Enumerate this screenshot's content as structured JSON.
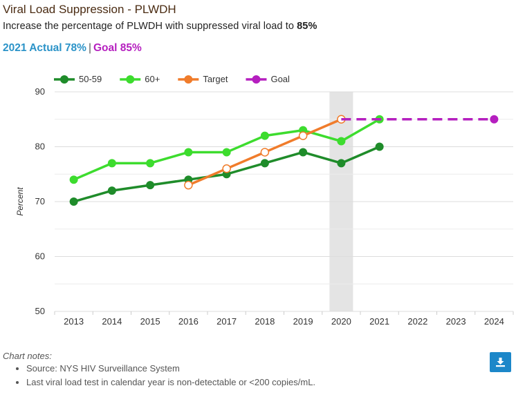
{
  "header": {
    "title": "Viral Load Suppression - PLWDH",
    "subtitle_text": "Increase the percentage of PLWDH with suppressed viral load to ",
    "subtitle_bold": "85%",
    "actual_label": "2021 Actual",
    "actual_value": "78%",
    "separator": "|",
    "goal_label": "Goal",
    "goal_value": "85%"
  },
  "chart_data": {
    "type": "line",
    "xlabel": "",
    "ylabel": "Percent",
    "ylim": [
      50,
      90
    ],
    "yticks": [
      50,
      60,
      70,
      80,
      90
    ],
    "categories": [
      "2013",
      "2014",
      "2015",
      "2016",
      "2017",
      "2018",
      "2019",
      "2020",
      "2021",
      "2022",
      "2023",
      "2024"
    ],
    "highlight_category": "2020",
    "grid": true,
    "legend": "top-left",
    "series": [
      {
        "name": "50-59",
        "color": "#1f8c2a",
        "style": "solid",
        "marker": "filled",
        "values": [
          70,
          72,
          73,
          74,
          75,
          77,
          79,
          77,
          80,
          null,
          null,
          null
        ]
      },
      {
        "name": "60+",
        "color": "#3ddc2e",
        "style": "solid",
        "marker": "filled",
        "values": [
          74,
          77,
          77,
          79,
          79,
          82,
          83,
          81,
          85,
          null,
          null,
          null
        ]
      },
      {
        "name": "Target",
        "color": "#f07c2b",
        "style": "solid",
        "marker": "hollow",
        "values": [
          null,
          null,
          null,
          73,
          76,
          79,
          82,
          85,
          null,
          null,
          null,
          null
        ]
      },
      {
        "name": "Goal",
        "color": "#b51fbf",
        "style": "dashed",
        "marker": "end-filled",
        "values": [
          null,
          null,
          null,
          null,
          null,
          null,
          null,
          85,
          85,
          85,
          85,
          85
        ]
      }
    ]
  },
  "notes": {
    "header": "Chart notes:",
    "items": [
      "Source: NYS HIV Surveillance System",
      "Last viral load test in calendar year is non-detectable or <200 copies/mL."
    ]
  },
  "download": {
    "icon": "download-icon",
    "color": "#1c87c9"
  }
}
